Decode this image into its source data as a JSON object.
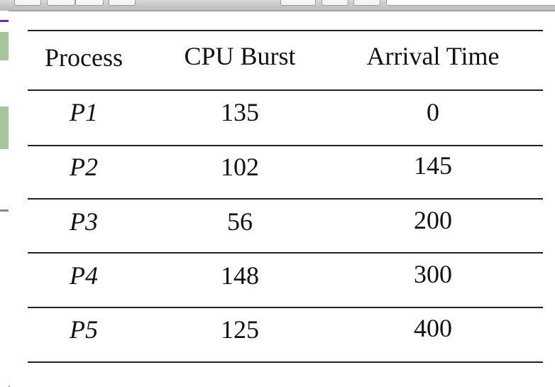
{
  "table": {
    "headers": [
      "Process",
      "CPU Burst",
      "Arrival Time"
    ],
    "rows": [
      {
        "process": "P1",
        "burst": "135",
        "arrival": "0"
      },
      {
        "process": "P2",
        "burst": "102",
        "arrival": "145"
      },
      {
        "process": "P3",
        "burst": "56",
        "arrival": "200"
      },
      {
        "process": "P4",
        "burst": "148",
        "arrival": "300"
      },
      {
        "process": "P5",
        "burst": "125",
        "arrival": "400"
      }
    ]
  }
}
